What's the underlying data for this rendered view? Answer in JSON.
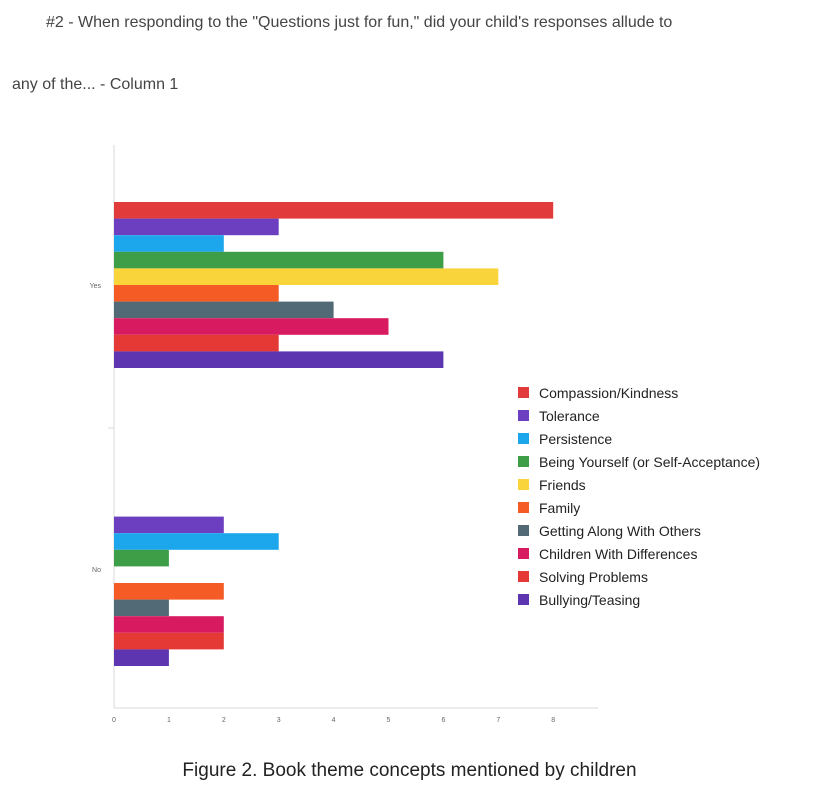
{
  "title_lines": [
    "#2 - When responding to the \"Questions just for fun,\" did your child's responses allude to",
    "any of the... - Column 1"
  ],
  "caption": "Figure 2. Book theme concepts mentioned by children",
  "chart_data": {
    "type": "bar",
    "orientation": "horizontal",
    "categories": [
      "Yes",
      "No"
    ],
    "series": [
      {
        "name": "Compassion/Kindness",
        "color": "#e23b3b",
        "values": [
          8,
          0
        ]
      },
      {
        "name": "Tolerance",
        "color": "#6b3fbf",
        "values": [
          3,
          2
        ]
      },
      {
        "name": "Persistence",
        "color": "#1ca6ec",
        "values": [
          2,
          3
        ]
      },
      {
        "name": "Being Yourself (or Self-Acceptance)",
        "color": "#3e9e48",
        "values": [
          6,
          1
        ]
      },
      {
        "name": "Friends",
        "color": "#f9d53b",
        "values": [
          7,
          0
        ]
      },
      {
        "name": "Family",
        "color": "#f45b25",
        "values": [
          3,
          2
        ]
      },
      {
        "name": "Getting Along With Others",
        "color": "#526a75",
        "values": [
          4,
          1
        ]
      },
      {
        "name": "Children With Differences",
        "color": "#d81b60",
        "values": [
          5,
          2
        ]
      },
      {
        "name": "Solving Problems",
        "color": "#e53935",
        "values": [
          3,
          2
        ]
      },
      {
        "name": "Bullying/Teasing",
        "color": "#5e35b1",
        "values": [
          6,
          1
        ]
      }
    ],
    "x_ticks": [
      "0",
      "1",
      "2",
      "3",
      "4",
      "5",
      "6",
      "7",
      "8"
    ],
    "xlim": [
      0,
      8.8
    ],
    "legend_position": "right",
    "grid": false
  }
}
